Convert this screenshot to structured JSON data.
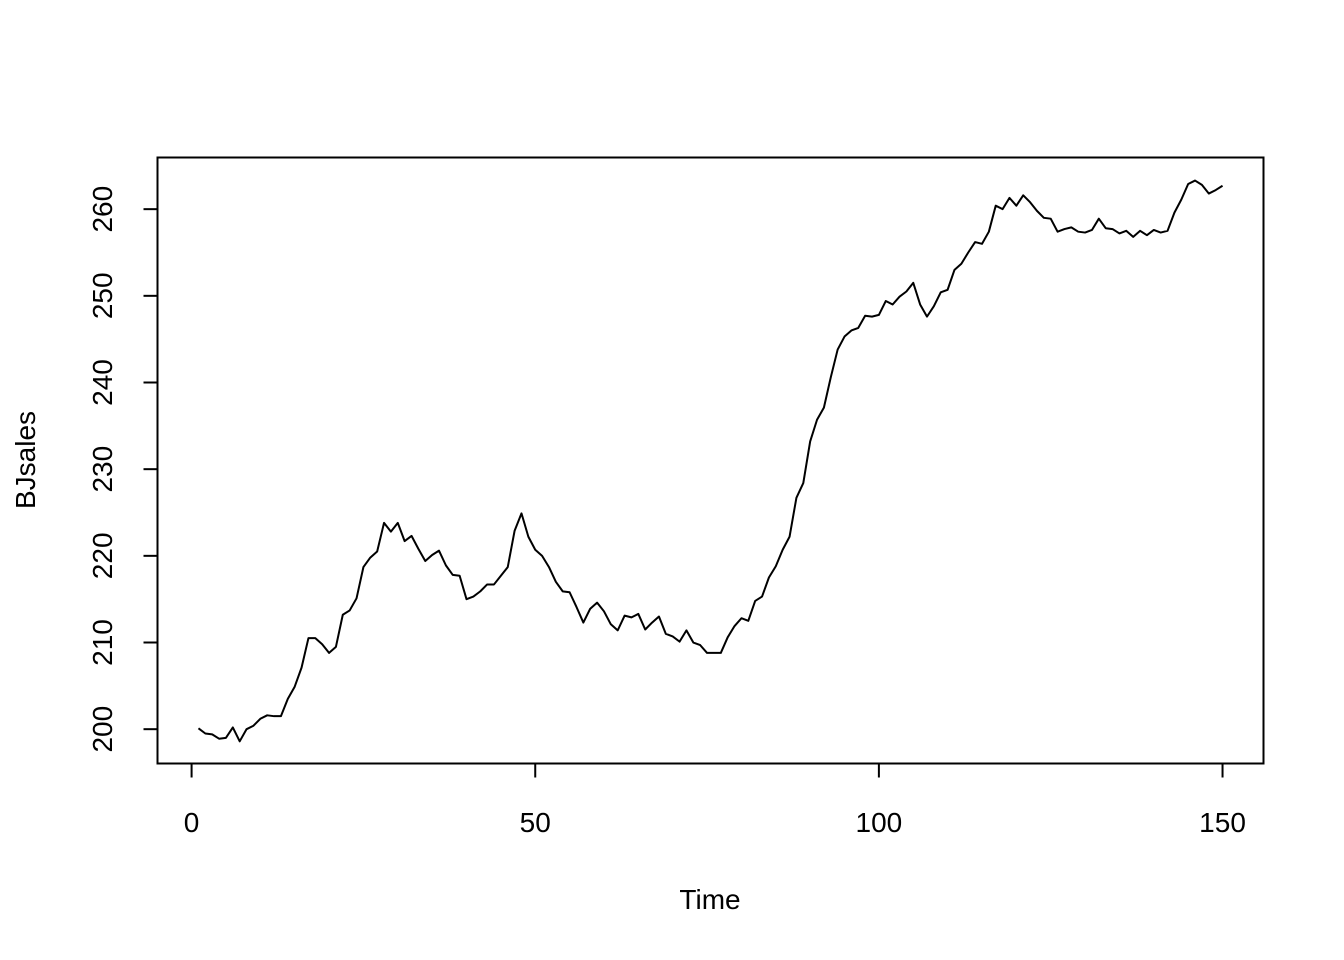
{
  "chart_data": {
    "type": "line",
    "title": "",
    "xlabel": "Time",
    "ylabel": "BJsales",
    "xlim": [
      -4.96,
      155.96
    ],
    "ylim": [
      196.04,
      265.96
    ],
    "xticks": [
      0,
      50,
      100,
      150
    ],
    "yticks": [
      200,
      210,
      220,
      230,
      240,
      250,
      260
    ],
    "grid": false,
    "legend": "none",
    "colors": {
      "line": "#000000",
      "frame": "#000000",
      "background": "#ffffff"
    },
    "series": [
      {
        "values": [
          200.1,
          199.5,
          199.4,
          198.9,
          199.0,
          200.2,
          198.6,
          200.0,
          200.4,
          201.2,
          201.6,
          201.5,
          201.5,
          203.5,
          204.9,
          207.1,
          210.5,
          210.5,
          209.8,
          208.8,
          209.5,
          213.2,
          213.7,
          215.1,
          218.7,
          219.8,
          220.5,
          223.8,
          222.8,
          223.8,
          221.7,
          222.3,
          220.8,
          219.4,
          220.1,
          220.6,
          218.9,
          217.8,
          217.7,
          215.0,
          215.3,
          215.9,
          216.7,
          216.7,
          217.7,
          218.7,
          222.9,
          224.9,
          222.2,
          220.7,
          220.0,
          218.7,
          217.0,
          215.9,
          215.8,
          214.1,
          212.3,
          213.9,
          214.6,
          213.6,
          212.1,
          211.4,
          213.1,
          212.9,
          213.3,
          211.5,
          212.3,
          213.0,
          211.0,
          210.7,
          210.1,
          211.4,
          210.0,
          209.7,
          208.8,
          208.8,
          208.8,
          210.6,
          211.9,
          212.8,
          212.5,
          214.8,
          215.3,
          217.5,
          218.8,
          220.7,
          222.2,
          226.7,
          228.4,
          233.2,
          235.7,
          237.1,
          240.6,
          243.8,
          245.3,
          246.0,
          246.3,
          247.7,
          247.6,
          247.8,
          249.4,
          249.0,
          249.9,
          250.5,
          251.5,
          249.0,
          247.6,
          248.8,
          250.4,
          250.7,
          253.0,
          253.7,
          255.0,
          256.2,
          256.0,
          257.4,
          260.4,
          260.0,
          261.3,
          260.4,
          261.6,
          260.8,
          259.8,
          259.0,
          258.9,
          257.4,
          257.7,
          257.9,
          257.4,
          257.3,
          257.6,
          258.9,
          257.8,
          257.7,
          257.2,
          257.5,
          256.8,
          257.5,
          257.0,
          257.6,
          257.3,
          257.5,
          259.6,
          261.1,
          262.9,
          263.3,
          262.8,
          261.8,
          262.2,
          262.7
        ]
      }
    ]
  }
}
